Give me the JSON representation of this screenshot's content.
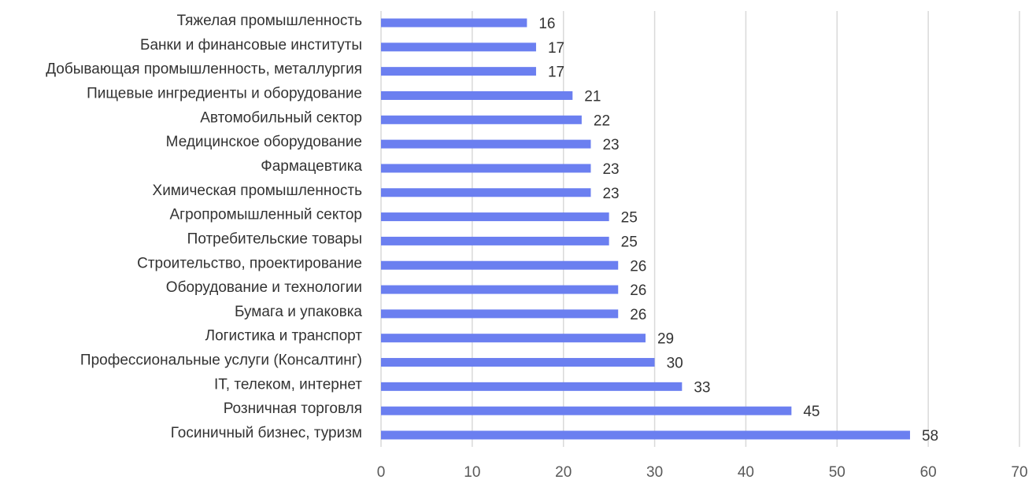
{
  "chart_data": {
    "type": "bar",
    "orientation": "horizontal",
    "categories": [
      "Тяжелая промышленность",
      "Банки и финансовые институты",
      "Добывающая промышленность, металлургия",
      "Пищевые ингредиенты и оборудование",
      "Автомобильный сектор",
      "Медицинское оборудование",
      "Фармацевтика",
      "Химическая промышленность",
      "Агропромышленный сектор",
      "Потребительские товары",
      "Строительство, проектирование",
      "Оборудование и технологии",
      "Бумага и упаковка",
      "Логистика и транспорт",
      "Профессиональные услуги (Консалтинг)",
      "IT, телеком, интернет",
      "Розничная торговля",
      "Госиничный бизнес, туризм"
    ],
    "values": [
      16,
      17,
      17,
      21,
      22,
      23,
      23,
      23,
      25,
      25,
      26,
      26,
      26,
      29,
      30,
      33,
      45,
      58
    ],
    "color": "#6b7ff0",
    "xlim": [
      0,
      70
    ],
    "xticks": [
      0,
      10,
      20,
      30,
      40,
      50,
      60,
      70
    ],
    "grid": true
  }
}
